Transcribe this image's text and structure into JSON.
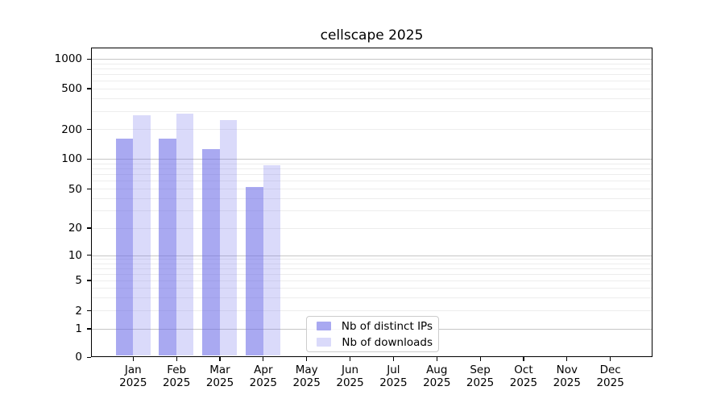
{
  "header": {
    "title": "cellscape 2025"
  },
  "chart_data": {
    "type": "bar",
    "title": "cellscape 2025",
    "yscale": "symlog (log above 1, linear 0-1)",
    "ylim": [
      0,
      1300
    ],
    "grid": true,
    "legend_position": "lower center",
    "yticks": [
      0,
      1,
      2,
      5,
      10,
      20,
      50,
      100,
      200,
      500,
      1000
    ],
    "minor_gridlines": [
      2,
      3,
      4,
      5,
      6,
      7,
      8,
      9,
      20,
      30,
      40,
      50,
      60,
      70,
      80,
      90,
      200,
      300,
      400,
      500,
      600,
      700,
      800,
      900
    ],
    "major_gridlines": [
      1,
      10,
      100,
      1000
    ],
    "categories": [
      {
        "month": "Jan",
        "year": "2025"
      },
      {
        "month": "Feb",
        "year": "2025"
      },
      {
        "month": "Mar",
        "year": "2025"
      },
      {
        "month": "Apr",
        "year": "2025"
      },
      {
        "month": "May",
        "year": "2025"
      },
      {
        "month": "Jun",
        "year": "2025"
      },
      {
        "month": "Jul",
        "year": "2025"
      },
      {
        "month": "Aug",
        "year": "2025"
      },
      {
        "month": "Sep",
        "year": "2025"
      },
      {
        "month": "Oct",
        "year": "2025"
      },
      {
        "month": "Nov",
        "year": "2025"
      },
      {
        "month": "Dec",
        "year": "2025"
      }
    ],
    "series": [
      {
        "name": "Nb of distinct IPs",
        "base_color": "#8888ee",
        "fill": "rgba(106,106,231,0.58)",
        "values": [
          160,
          162,
          125,
          52,
          null,
          null,
          null,
          null,
          null,
          null,
          null,
          null
        ]
      },
      {
        "name": "Nb of downloads",
        "base_color": "#8888ee",
        "fill": "rgba(118,118,238,0.27)",
        "values": [
          275,
          282,
          245,
          86,
          null,
          null,
          null,
          null,
          null,
          null,
          null,
          null
        ]
      }
    ]
  }
}
